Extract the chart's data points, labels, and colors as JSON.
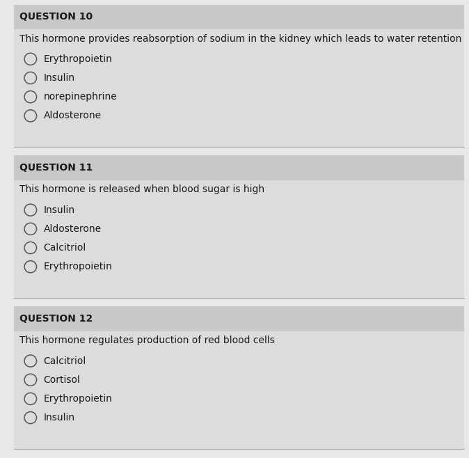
{
  "background_color": "#e8e8e8",
  "section_bg_color": "#dcdcdc",
  "header_bg_color": "#c8c8c8",
  "questions": [
    {
      "number": "QUESTION 10",
      "text": "This hormone provides reabsorption of sodium in the kidney which leads to water retention",
      "options": [
        "Erythropoietin",
        "Insulin",
        "norepinephrine",
        "Aldosterone"
      ]
    },
    {
      "number": "QUESTION 11",
      "text": "This hormone is released when blood sugar is high",
      "options": [
        "Insulin",
        "Aldosterone",
        "Calcitriol",
        "Erythropoietin"
      ]
    },
    {
      "number": "QUESTION 12",
      "text": "This hormone regulates production of red blood cells",
      "options": [
        "Calcitriol",
        "Cortisol",
        "Erythropoietin",
        "Insulin"
      ]
    }
  ],
  "question_label_fontsize": 10,
  "question_text_fontsize": 10,
  "option_fontsize": 10,
  "text_color": "#1a1a1a",
  "circle_color": "#555555",
  "divider_color": "#aaaaaa"
}
